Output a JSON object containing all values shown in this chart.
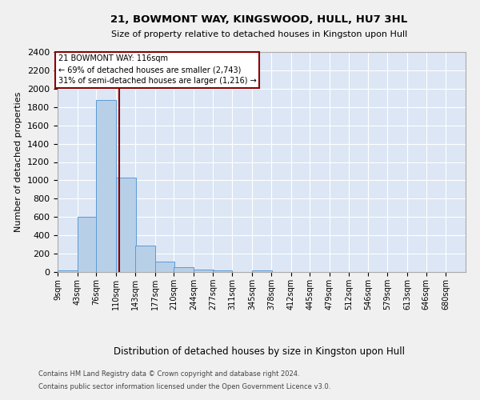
{
  "title": "21, BOWMONT WAY, KINGSWOOD, HULL, HU7 3HL",
  "subtitle": "Size of property relative to detached houses in Kingston upon Hull",
  "xlabel": "Distribution of detached houses by size in Kingston upon Hull",
  "ylabel": "Number of detached properties",
  "footnote1": "Contains HM Land Registry data © Crown copyright and database right 2024.",
  "footnote2": "Contains public sector information licensed under the Open Government Licence v3.0.",
  "bin_labels": [
    "9sqm",
    "43sqm",
    "76sqm",
    "110sqm",
    "143sqm",
    "177sqm",
    "210sqm",
    "244sqm",
    "277sqm",
    "311sqm",
    "345sqm",
    "378sqm",
    "412sqm",
    "445sqm",
    "479sqm",
    "512sqm",
    "546sqm",
    "579sqm",
    "613sqm",
    "646sqm",
    "680sqm"
  ],
  "bin_lefts": [
    9,
    43,
    76,
    110,
    143,
    177,
    210,
    244,
    277,
    311,
    345,
    378,
    412,
    445,
    479,
    512,
    546,
    579,
    613,
    646,
    680
  ],
  "bar_values": [
    20,
    600,
    1880,
    1030,
    290,
    110,
    50,
    30,
    20,
    0,
    20,
    0,
    0,
    0,
    0,
    0,
    0,
    0,
    0,
    0,
    0
  ],
  "bar_color": "#b8cfe8",
  "bar_edge_color": "#5b9bd5",
  "background_color": "#dce6f5",
  "grid_color": "#ffffff",
  "fig_bg_color": "#f0f0f0",
  "ylim": [
    0,
    2400
  ],
  "yticks": [
    0,
    200,
    400,
    600,
    800,
    1000,
    1200,
    1400,
    1600,
    1800,
    2000,
    2200,
    2400
  ],
  "property_size_sqm": 116,
  "red_line_color": "#8b0000",
  "annotation_title": "21 BOWMONT WAY: 116sqm",
  "annotation_line1": "← 69% of detached houses are smaller (2,743)",
  "annotation_line2": "31% of semi-detached houses are larger (1,216) →",
  "annotation_box_edgecolor": "#8b0000",
  "bin_width": 34
}
